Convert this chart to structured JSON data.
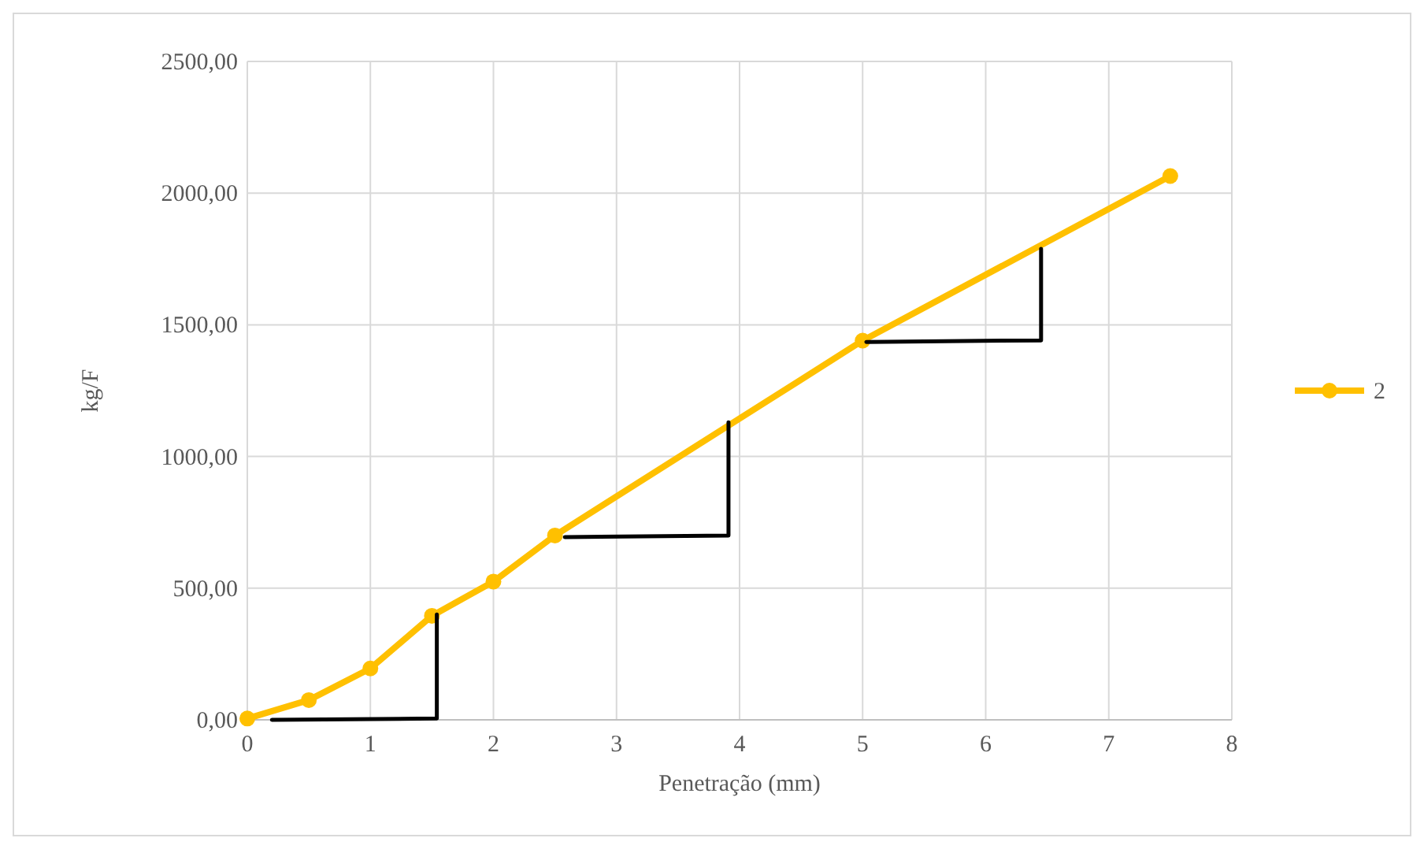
{
  "chart_data": {
    "type": "line",
    "xlabel": "Penetração (mm)",
    "ylabel": "kg/F",
    "xlim": [
      0,
      8
    ],
    "xticks": [
      0,
      1,
      2,
      3,
      4,
      5,
      6,
      7,
      8
    ],
    "ylim": [
      0,
      2500
    ],
    "yticks": [
      {
        "value": 0,
        "label": "0,00"
      },
      {
        "value": 500,
        "label": "500,00"
      },
      {
        "value": 1000,
        "label": "1000,00"
      },
      {
        "value": 1500,
        "label": "1500,00"
      },
      {
        "value": 2000,
        "label": "2000,00"
      },
      {
        "value": 2500,
        "label": "2500,00"
      }
    ],
    "grid": true,
    "legend": "right",
    "marker": "circle",
    "line_style": "solid",
    "series": [
      {
        "name": "2",
        "color": "#ffc000",
        "x": [
          0,
          0.5,
          1,
          1.5,
          2,
          2.5,
          5,
          7.5
        ],
        "values": [
          5,
          75,
          195,
          395,
          525,
          700,
          1440,
          2065
        ]
      },
      {
        "color": "#000000",
        "marker": "none",
        "x": [
          0.2,
          1.54,
          1.54
        ],
        "values": [
          0,
          5,
          400
        ]
      },
      {
        "color": "#000000",
        "marker": "none",
        "x": [
          2.58,
          3.91,
          3.91
        ],
        "values": [
          694,
          700,
          1130
        ]
      },
      {
        "color": "#000000",
        "marker": "none",
        "x": [
          5.03,
          6.45,
          6.45
        ],
        "values": [
          1435,
          1441,
          1788
        ]
      }
    ]
  }
}
